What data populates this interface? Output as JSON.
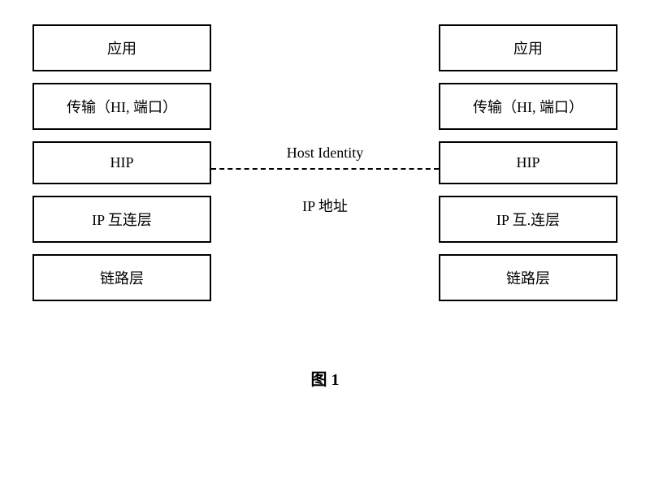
{
  "left_stack": {
    "layers": [
      "应用",
      "传输（HI, 端口）",
      "HIP",
      "IP 互连层",
      "链路层"
    ]
  },
  "right_stack": {
    "layers": [
      "应用",
      "传输（HI, 端口）",
      "HIP",
      "IP 互.连层",
      "链路层"
    ]
  },
  "connector": {
    "top_label": "Host Identity",
    "bottom_label": "IP 地址"
  },
  "figure_label": "图 1",
  "styling": {
    "box_border_color": "#000000",
    "box_border_width": 2,
    "background_color": "#ffffff",
    "font_size_box": 18,
    "font_size_label": 18,
    "font_size_figure": 20,
    "stack_width": 220,
    "box_gap": 14,
    "dash_color": "#000000"
  }
}
